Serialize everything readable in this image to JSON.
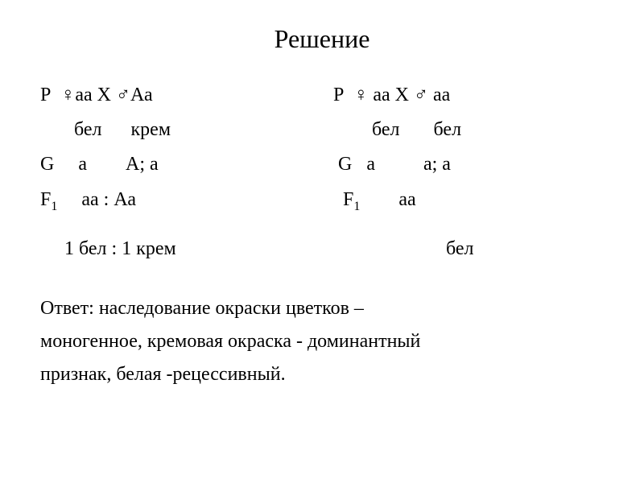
{
  "title": "Решение",
  "left": {
    "p": "Р  ♀аа Х ♂Аа",
    "labels": "       бел      крем",
    "g": "G     а        А; а",
    "f1_prefix": "F",
    "f1_sub": "1",
    "f1_suffix": "     аа : Аа",
    "ratio": "1 бел : 1 крем"
  },
  "right": {
    "p": "Р  ♀ аа Х ♂ аа",
    "labels": "        бел       бел",
    "g": " G   а          а; а",
    "f1_prefix": "  F",
    "f1_sub": "1",
    "f1_suffix": "        аа",
    "ratio": "бел"
  },
  "answer": {
    "line1": "Ответ: наследование окраски цветков –",
    "line2": "моногенное, кремовая окраска - доминантный",
    "line3": "признак, белая -рецессивный."
  },
  "styling": {
    "background_color": "#ffffff",
    "text_color": "#000000",
    "title_fontsize": 32,
    "body_fontsize": 24,
    "sub_fontsize": 16,
    "font_family": "Times New Roman",
    "line_height": 1.8
  }
}
